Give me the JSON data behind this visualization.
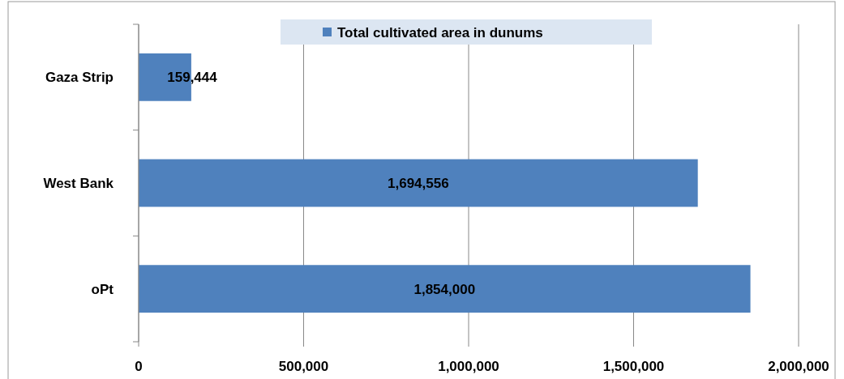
{
  "chart_data": {
    "type": "bar",
    "orientation": "horizontal",
    "categories": [
      "Gaza Strip",
      "West Bank",
      "oPt"
    ],
    "series": [
      {
        "name": "Total cultivated area in dunums",
        "color": "#4f81bd",
        "values": [
          159444,
          1694556,
          1854000
        ],
        "value_labels": [
          "159,444",
          "1,694,556",
          "1,854,000"
        ]
      }
    ],
    "xlim": [
      0,
      2000000
    ],
    "xticks": [
      {
        "value": 0,
        "label": "0"
      },
      {
        "value": 500000,
        "label": "500,000"
      },
      {
        "value": 1000000,
        "label": "1,000,000"
      },
      {
        "value": 1500000,
        "label": "1,500,000"
      },
      {
        "value": 2000000,
        "label": "2,000,000"
      }
    ],
    "grid": "x",
    "legend": "top"
  }
}
